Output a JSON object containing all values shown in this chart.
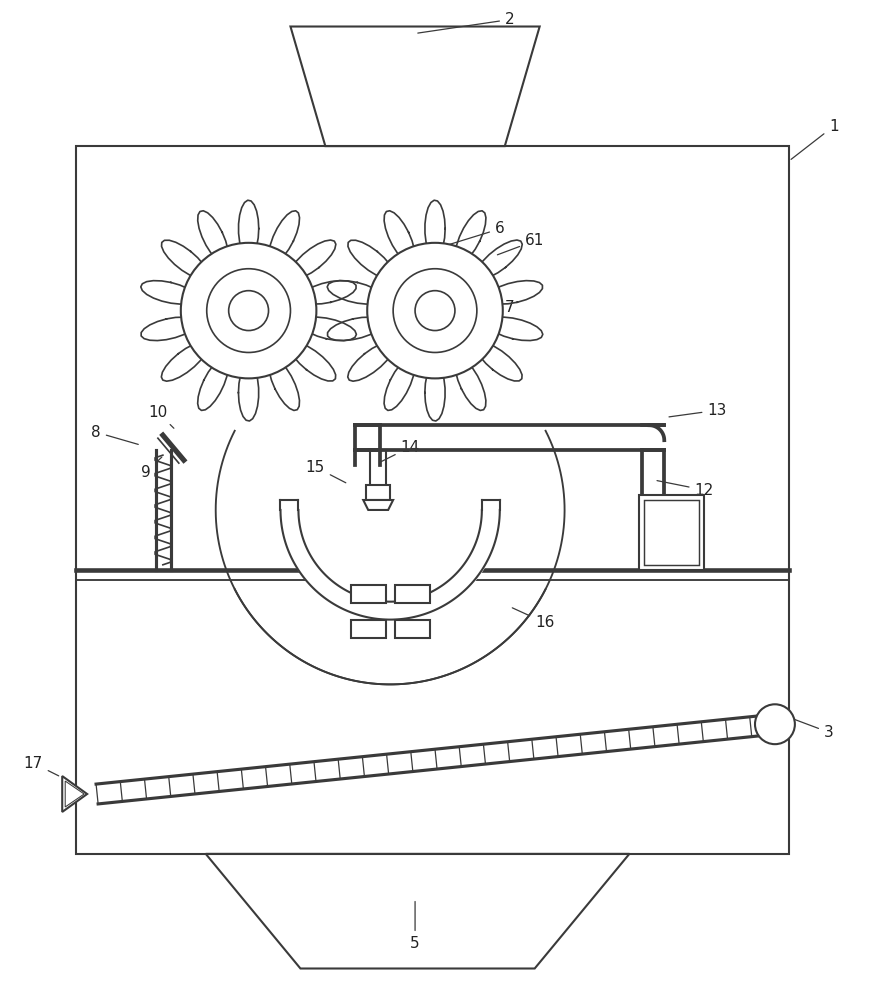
{
  "bg_color": "#ffffff",
  "line_color": "#3a3a3a",
  "line_width": 1.5,
  "thin_line": 0.9,
  "label_color": "#222222",
  "fig_width": 8.71,
  "fig_height": 10.0
}
